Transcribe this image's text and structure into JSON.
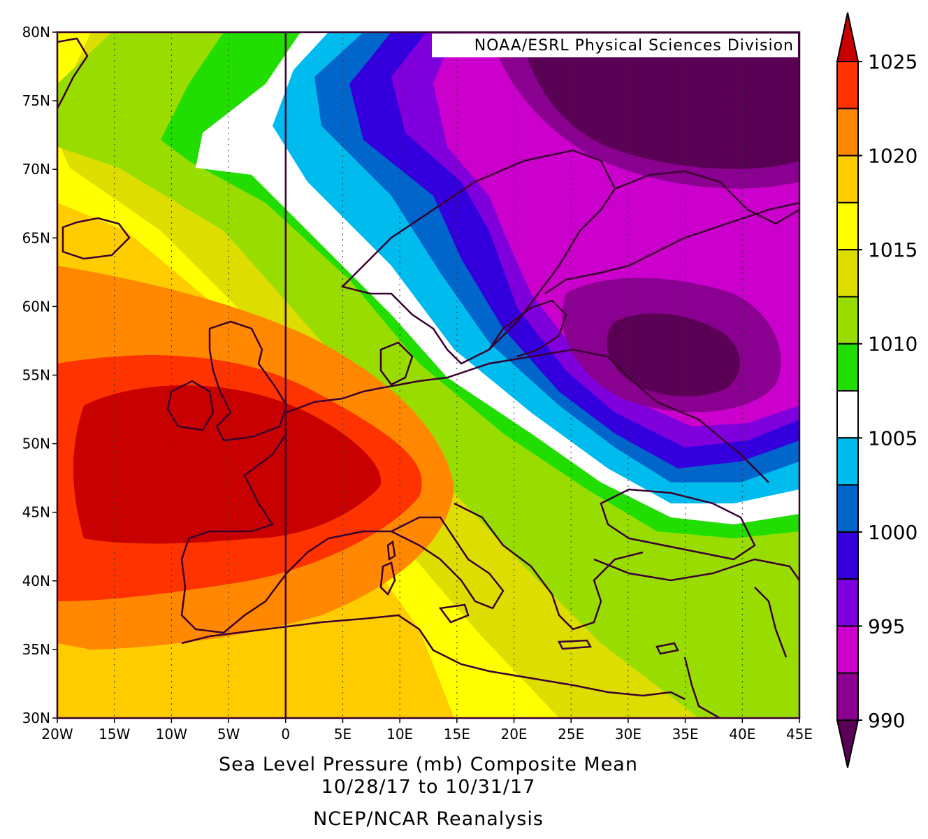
{
  "map": {
    "title": "Sea Level Pressure (mb) Composite Mean",
    "date_range": "10/28/17  to 10/31/17",
    "source": "NCEP/NCAR Reanalysis",
    "credit": "NOAA/ESRL Physical Sciences Division",
    "lon_range": [
      -20,
      45
    ],
    "lat_range": [
      30,
      80
    ],
    "lon_ticks": [
      "20W",
      "15W",
      "10W",
      "5W",
      "0",
      "5E",
      "10E",
      "15E",
      "20E",
      "25E",
      "30E",
      "35E",
      "40E",
      "45E"
    ],
    "lat_ticks": [
      "80N",
      "75N",
      "70N",
      "65N",
      "60N",
      "55N",
      "50N",
      "45N",
      "40N",
      "35N",
      "30N"
    ]
  },
  "colorbar": {
    "labels": [
      "1025",
      "1020",
      "1015",
      "1010",
      "1005",
      "1000",
      "995",
      "990"
    ],
    "colors": {
      "below_990": "#5a0055",
      "990_992": "#8a0090",
      "992_995": "#cc00cc",
      "995_997": "#8000dd",
      "997_1000": "#3300dd",
      "1000_1002": "#0066cc",
      "1002_1005": "#00bbee",
      "1005_1007": "#ffffff",
      "1007_1010": "#22dd00",
      "1010_1012": "#99dd00",
      "1012_1015": "#dddd00",
      "1015_1017": "#ffff00",
      "1017_1020": "#ffcc00",
      "1020_1022": "#ff8800",
      "1022_1025": "#ff3300",
      "above_1025": "#c80000"
    }
  },
  "chart_data": {
    "type": "heatmap",
    "variable": "Sea Level Pressure (mb)",
    "units": "mb",
    "xlim": [
      -20,
      45
    ],
    "ylim": [
      30,
      80
    ],
    "levels": [
      990,
      992.5,
      995,
      997.5,
      1000,
      1002.5,
      1005,
      1007.5,
      1010,
      1012.5,
      1015,
      1017.5,
      1020,
      1022.5,
      1025
    ],
    "features": [
      {
        "kind": "high",
        "lon": -7,
        "lat": 48,
        "value": 1026
      },
      {
        "kind": "low",
        "lon": 33,
        "lat": 57,
        "value": 989
      },
      {
        "kind": "low",
        "lon": 35,
        "lat": 76,
        "value": 989
      }
    ]
  }
}
